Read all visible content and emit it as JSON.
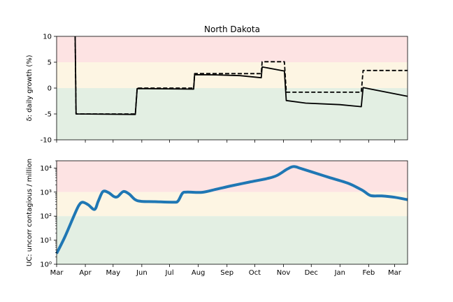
{
  "chart_data": [
    {
      "type": "line",
      "title": "North Dakota",
      "ylabel": "δ: daily growth (%)",
      "xlabel": "",
      "ylim": [
        -10,
        10
      ],
      "yticks": [
        -10,
        -5,
        0,
        5,
        10
      ],
      "grid": false,
      "bands": [
        {
          "from": 5,
          "to": 10,
          "color": "#fde3e3"
        },
        {
          "from": 0,
          "to": 5,
          "color": "#fdf5e3"
        },
        {
          "from": -10,
          "to": 0,
          "color": "#e3efe3"
        }
      ],
      "series": [
        {
          "style": "solid",
          "color": "#000000",
          "points": [
            [
              "2020-03-21",
              10
            ],
            [
              "2020-03-22",
              -5.0
            ],
            [
              "2020-05-25",
              -5.1
            ],
            [
              "2020-05-27",
              -0.1
            ],
            [
              "2020-07-27",
              -0.2
            ],
            [
              "2020-07-28",
              2.6
            ],
            [
              "2020-08-20",
              2.55
            ],
            [
              "2020-09-15",
              2.4
            ],
            [
              "2020-10-08",
              2.0
            ],
            [
              "2020-10-09",
              4.1
            ],
            [
              "2020-11-02",
              3.3
            ],
            [
              "2020-11-04",
              -2.4
            ],
            [
              "2020-11-25",
              -2.9
            ],
            [
              "2021-01-01",
              -3.2
            ],
            [
              "2021-01-24",
              -3.6
            ],
            [
              "2021-01-26",
              0.1
            ],
            [
              "2021-03-15",
              -1.6
            ]
          ]
        },
        {
          "style": "dashed",
          "color": "#000000",
          "points": [
            [
              "2020-03-21",
              10
            ],
            [
              "2020-03-22",
              -5.0
            ],
            [
              "2020-05-25",
              -5.0
            ],
            [
              "2020-05-27",
              0.0
            ],
            [
              "2020-07-27",
              0.0
            ],
            [
              "2020-07-28",
              2.8
            ],
            [
              "2020-10-08",
              2.8
            ],
            [
              "2020-10-09",
              5.1
            ],
            [
              "2020-11-02",
              5.1
            ],
            [
              "2020-11-04",
              -0.8
            ],
            [
              "2021-01-24",
              -0.8
            ],
            [
              "2021-01-26",
              3.4
            ],
            [
              "2021-03-15",
              3.4
            ]
          ]
        }
      ]
    },
    {
      "type": "line",
      "title": "",
      "ylabel": "UC: uncorr contagious / million",
      "xlabel": "",
      "yscale": "log",
      "ylim": [
        1,
        20000
      ],
      "yticks": [
        1,
        10,
        100,
        1000,
        10000
      ],
      "ytick_labels": [
        "10⁰",
        "10¹",
        "10²",
        "10³",
        "10⁴"
      ],
      "grid": false,
      "bands": [
        {
          "from": 1000,
          "to": 20000,
          "color": "#fde3e3"
        },
        {
          "from": 100,
          "to": 1000,
          "color": "#fdf5e3"
        },
        {
          "from": 1,
          "to": 100,
          "color": "#e3efe3"
        }
      ],
      "series": [
        {
          "style": "solid",
          "color": "#1f77b4",
          "points": [
            [
              "2020-03-01",
              2.8
            ],
            [
              "2020-03-10",
              14
            ],
            [
              "2020-03-20",
              110
            ],
            [
              "2020-03-25",
              280
            ],
            [
              "2020-03-29",
              380
            ],
            [
              "2020-04-04",
              300
            ],
            [
              "2020-04-11",
              190
            ],
            [
              "2020-04-15",
              420
            ],
            [
              "2020-04-20",
              1050
            ],
            [
              "2020-04-26",
              950
            ],
            [
              "2020-05-02",
              650
            ],
            [
              "2020-05-06",
              650
            ],
            [
              "2020-05-12",
              1050
            ],
            [
              "2020-05-18",
              850
            ],
            [
              "2020-05-25",
              480
            ],
            [
              "2020-06-01",
              410
            ],
            [
              "2020-06-15",
              400
            ],
            [
              "2020-07-05",
              380
            ],
            [
              "2020-07-10",
              420
            ],
            [
              "2020-07-15",
              900
            ],
            [
              "2020-07-20",
              1000
            ],
            [
              "2020-08-05",
              980
            ],
            [
              "2020-08-20",
              1300
            ],
            [
              "2020-09-05",
              1800
            ],
            [
              "2020-09-25",
              2600
            ],
            [
              "2020-10-15",
              3700
            ],
            [
              "2020-10-25",
              4900
            ],
            [
              "2020-11-05",
              9000
            ],
            [
              "2020-11-12",
              11500
            ],
            [
              "2020-11-20",
              9500
            ],
            [
              "2020-12-01",
              7000
            ],
            [
              "2020-12-20",
              4100
            ],
            [
              "2021-01-10",
              2300
            ],
            [
              "2021-01-25",
              1200
            ],
            [
              "2021-02-03",
              720
            ],
            [
              "2021-02-15",
              690
            ],
            [
              "2021-03-01",
              610
            ],
            [
              "2021-03-15",
              480
            ]
          ]
        }
      ]
    }
  ],
  "x_axis": {
    "start": "2020-03-01",
    "end": "2021-03-15",
    "tick_dates": [
      "2020-03-01",
      "2020-04-01",
      "2020-05-01",
      "2020-06-01",
      "2020-07-01",
      "2020-08-01",
      "2020-09-01",
      "2020-10-01",
      "2020-11-01",
      "2020-12-01",
      "2021-01-01",
      "2021-02-01",
      "2021-03-01"
    ],
    "tick_labels": [
      "Mar",
      "Apr",
      "May",
      "Jun",
      "Jul",
      "Aug",
      "Sep",
      "Oct",
      "Nov",
      "Dec",
      "Jan",
      "Feb",
      "Mar"
    ]
  }
}
